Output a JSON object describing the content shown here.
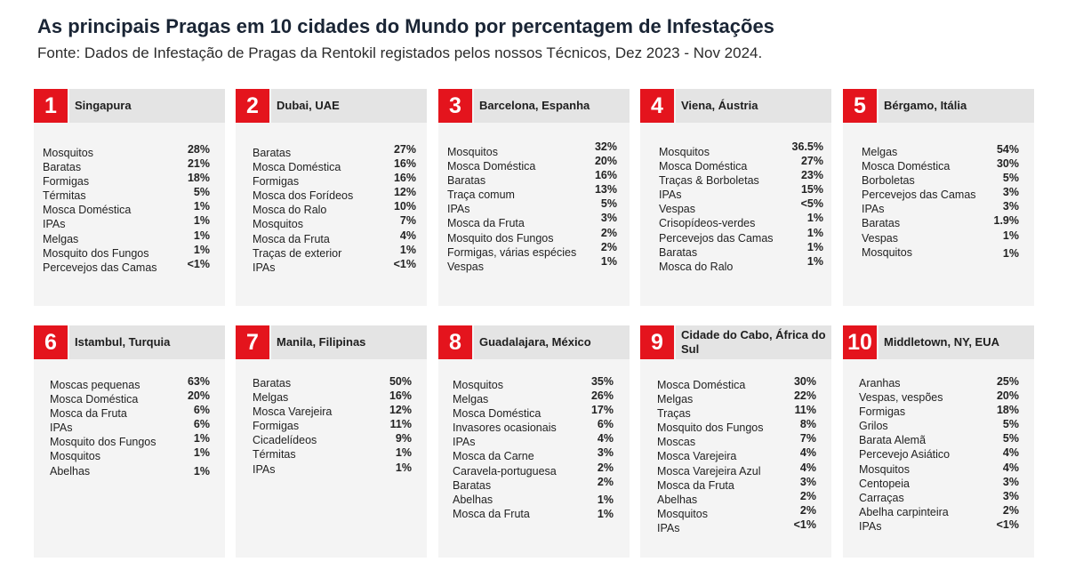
{
  "title": "As principais Pragas em 10 cidades do Mundo por percentagem de Infestações",
  "subtitle": "Fonte: Dados de Infestação de Pragas da Rentokil registados pelos nossos Técnicos, Dez 2023 - Nov 2024.",
  "colors": {
    "accent": "#e4141d",
    "header_bg": "#e4e4e4",
    "card_bg": "#f4f4f4"
  },
  "cities": [
    {
      "number": "1",
      "name": "Singapura",
      "pests": [
        "Mosquitos",
        "Baratas",
        "Formigas",
        "Térmitas",
        "Mosca Doméstica",
        "IPAs",
        "Melgas",
        "Mosquito dos Fungos",
        "Percevejos das Camas"
      ],
      "values": [
        "28%",
        "21%",
        "18%",
        "5%",
        "1%",
        "1%",
        "1%",
        "1%",
        "<1%"
      ]
    },
    {
      "number": "2",
      "name": "Dubai, UAE",
      "pests": [
        "Baratas",
        "Mosca Doméstica",
        "Formigas",
        "Mosca dos Forídeos",
        "Mosca do Ralo",
        "Mosquitos",
        "Mosca da Fruta",
        "Traças de exterior",
        "IPAs"
      ],
      "values": [
        "27%",
        "16%",
        "16%",
        "12%",
        "10%",
        "7%",
        "4%",
        "1%",
        "<1%"
      ]
    },
    {
      "number": "3",
      "name": "Barcelona, Espanha",
      "pests": [
        "Mosquitos",
        "Mosca Doméstica",
        "Baratas",
        "Traça comum",
        "IPAs",
        "Mosca da Fruta",
        "Mosquito dos Fungos",
        "Formigas, várias espécies",
        "Vespas"
      ],
      "values": [
        "32%",
        "20%",
        "16%",
        "13%",
        "5%",
        "3%",
        "2%",
        "2%",
        "1%"
      ]
    },
    {
      "number": "4",
      "name": "Viena, Áustria",
      "pests": [
        "Mosquitos",
        "Mosca Doméstica",
        "Traças & Borboletas",
        "IPAs",
        "Vespas",
        "Crisopídeos-verdes",
        "Percevejos das Camas",
        "Baratas",
        "Mosca do Ralo"
      ],
      "values": [
        "36.5%",
        "27%",
        "23%",
        "15%",
        "<5%",
        "1%",
        "1%",
        "1%",
        "1%"
      ]
    },
    {
      "number": "5",
      "name": "Bérgamo, Itália",
      "pests": [
        "Melgas",
        "Mosca Doméstica",
        "Borboletas",
        "Percevejos das Camas",
        "IPAs",
        "Baratas",
        "Vespas",
        "Mosquitos"
      ],
      "values": [
        "54%",
        "30%",
        "5%",
        "3%",
        "3%",
        "1.9%",
        "1%",
        "1%"
      ]
    },
    {
      "number": "6",
      "name": "Istambul, Turquia",
      "pests": [
        "Moscas pequenas",
        "Mosca Doméstica",
        "Mosca da Fruta",
        "IPAs",
        "Mosquito dos Fungos",
        "Mosquitos",
        "Abelhas"
      ],
      "values": [
        "63%",
        "20%",
        "6%",
        "6%",
        "1%",
        "1%",
        "1%"
      ]
    },
    {
      "number": "7",
      "name": "Manila, Filipinas",
      "pests": [
        "Baratas",
        "Melgas",
        "Mosca Varejeira",
        "Formigas",
        "Cicadelídeos",
        "Térmitas",
        "IPAs"
      ],
      "values": [
        "50%",
        "16%",
        "12%",
        "11%",
        "9%",
        "1%",
        "1%"
      ]
    },
    {
      "number": "8",
      "name": "Guadalajara, México",
      "pests": [
        "Mosquitos",
        "Melgas",
        "Mosca Doméstica",
        "Invasores ocasionais",
        "IPAs",
        "Mosca da Carne",
        "Caravela-portuguesa",
        "Baratas",
        "Abelhas",
        "Mosca da Fruta"
      ],
      "values": [
        "35%",
        "26%",
        "17%",
        "6%",
        "4%",
        "3%",
        "2%",
        "2%",
        "1%",
        "1%"
      ]
    },
    {
      "number": "9",
      "name": "Cidade do Cabo, África do Sul",
      "pests": [
        "Mosca Doméstica",
        "Melgas",
        "Traças",
        "Mosquito dos Fungos",
        "Moscas",
        "Mosca Varejeira",
        "Mosca Varejeira Azul",
        "Mosca da Fruta",
        "Abelhas",
        "Mosquitos",
        "IPAs"
      ],
      "values": [
        "30%",
        "22%",
        "11%",
        "8%",
        "7%",
        "4%",
        "4%",
        "3%",
        "2%",
        "2%",
        "<1%"
      ]
    },
    {
      "number": "10",
      "name": "Middletown, NY, EUA",
      "pests": [
        "Aranhas",
        "Vespas, vespões",
        "Formigas",
        "Grilos",
        "Barata Alemã",
        "Percevejo Asiático",
        "Mosquitos",
        "Centopeia",
        "Carraças",
        "Abelha carpinteira",
        "IPAs"
      ],
      "values": [
        "25%",
        "20%",
        "18%",
        "5%",
        "5%",
        "4%",
        "4%",
        "3%",
        "3%",
        "2%",
        "<1%"
      ]
    }
  ]
}
